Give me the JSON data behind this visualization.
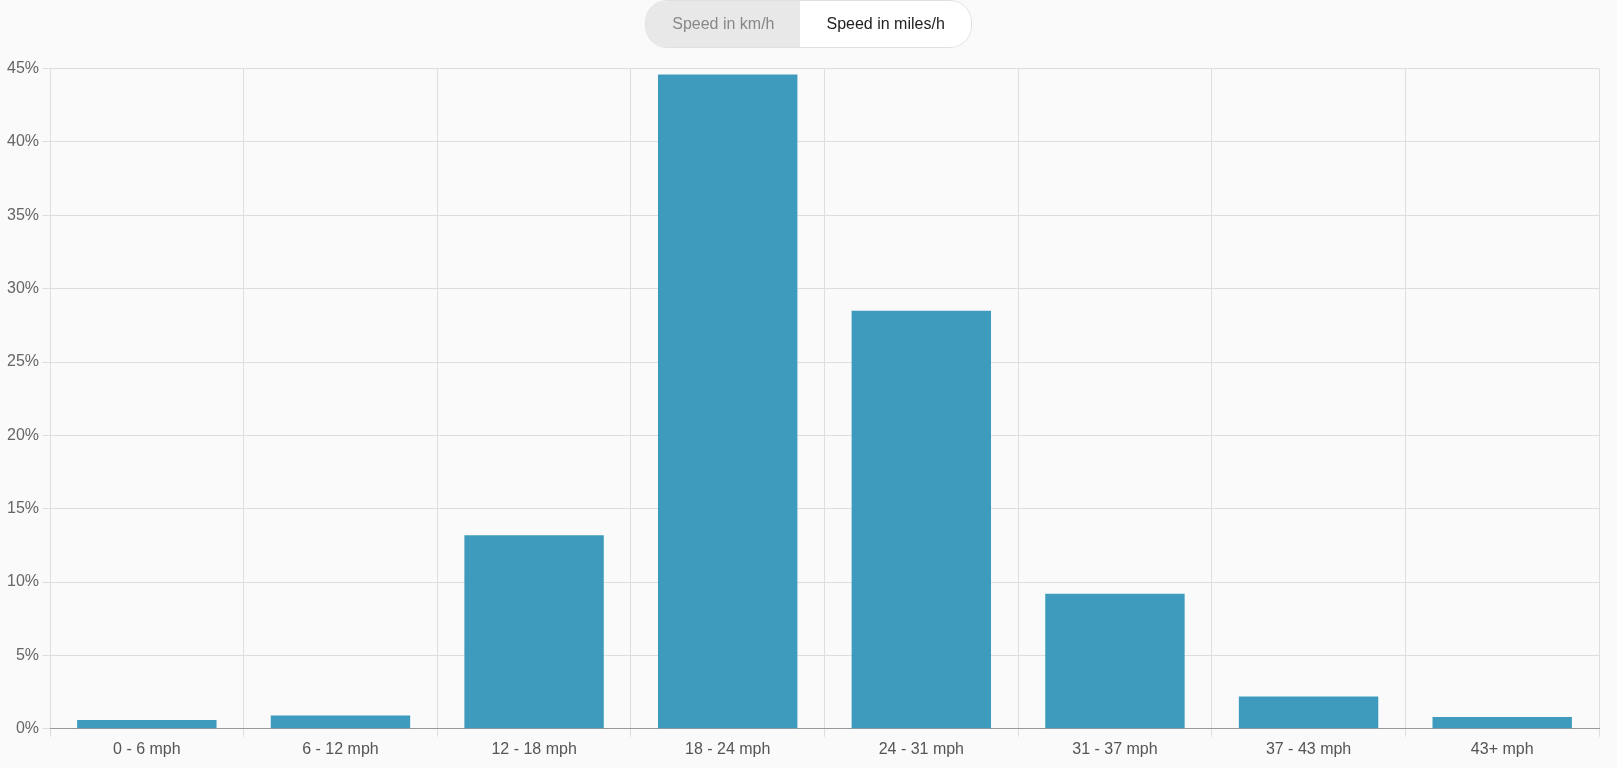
{
  "chart_data": {
    "type": "bar",
    "categories": [
      "0 - 6 mph",
      "6 - 12 mph",
      "12 - 18 mph",
      "18 - 24 mph",
      "24 - 31 mph",
      "31 - 37 mph",
      "37 - 43 mph",
      "43+ mph"
    ],
    "values": [
      0.6,
      0.9,
      13.2,
      44.6,
      28.5,
      9.2,
      2.2,
      0.8
    ],
    "color": "#3e9bbd",
    "ylim": [
      0,
      45
    ],
    "yticks": [
      {
        "value": 0,
        "label": "0%"
      },
      {
        "value": 5,
        "label": "5%"
      },
      {
        "value": 10,
        "label": "10%"
      },
      {
        "value": 15,
        "label": "15%"
      },
      {
        "value": 20,
        "label": "20%"
      },
      {
        "value": 25,
        "label": "25%"
      },
      {
        "value": 30,
        "label": "30%"
      },
      {
        "value": 35,
        "label": "35%"
      },
      {
        "value": 40,
        "label": "40%"
      },
      {
        "value": 45,
        "label": "45%"
      }
    ],
    "grid": true,
    "annotations": [
      "Speed in km/h",
      "Speed in miles/h"
    ]
  }
}
